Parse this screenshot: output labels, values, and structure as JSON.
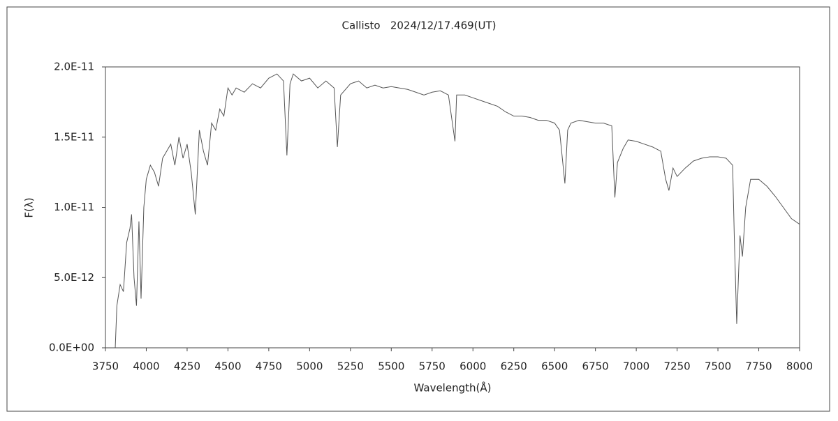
{
  "chart_data": {
    "type": "line",
    "title": "Callisto   2024/12/17.469(UT)",
    "x_label": "Wavelength(Å)",
    "y_label": "F(λ)",
    "color": "#555555",
    "xlim": [
      3750,
      8000
    ],
    "xticks": [
      3750,
      4000,
      4250,
      4500,
      4750,
      5000,
      5250,
      5500,
      5750,
      6000,
      6250,
      6500,
      6750,
      7000,
      7250,
      7500,
      7750,
      8000
    ],
    "ylim": [
      0,
      2e-11
    ],
    "yticks": [
      {
        "value": 0,
        "label": "0.0E+00"
      },
      {
        "value": 5e-12,
        "label": "5.0E-12"
      },
      {
        "value": 1e-11,
        "label": "1.0E-11"
      },
      {
        "value": 1.5e-11,
        "label": "1.5E-11"
      },
      {
        "value": 2e-11,
        "label": "2.0E-11"
      }
    ],
    "x": [
      3810,
      3820,
      3840,
      3860,
      3880,
      3900,
      3910,
      3925,
      3940,
      3955,
      3968,
      3985,
      4000,
      4025,
      4050,
      4075,
      4100,
      4125,
      4150,
      4175,
      4200,
      4225,
      4250,
      4275,
      4300,
      4325,
      4350,
      4375,
      4400,
      4425,
      4450,
      4475,
      4500,
      4525,
      4550,
      4600,
      4650,
      4700,
      4750,
      4800,
      4840,
      4861,
      4880,
      4900,
      4950,
      5000,
      5050,
      5100,
      5150,
      5170,
      5190,
      5250,
      5300,
      5350,
      5400,
      5450,
      5500,
      5550,
      5600,
      5650,
      5700,
      5750,
      5800,
      5850,
      5890,
      5900,
      5950,
      6000,
      6050,
      6100,
      6150,
      6200,
      6250,
      6300,
      6350,
      6400,
      6450,
      6500,
      6530,
      6563,
      6580,
      6600,
      6650,
      6700,
      6750,
      6800,
      6850,
      6869,
      6885,
      6920,
      6950,
      7000,
      7050,
      7100,
      7150,
      7180,
      7200,
      7225,
      7250,
      7300,
      7350,
      7400,
      7450,
      7500,
      7550,
      7590,
      7600,
      7615,
      7635,
      7650,
      7670,
      7700,
      7750,
      7800,
      7850,
      7900,
      7950,
      8000
    ],
    "values": [
      0,
      3e-12,
      4.5e-12,
      4e-12,
      7.5e-12,
      8.5e-12,
      9.5e-12,
      5e-12,
      3e-12,
      9e-12,
      3.5e-12,
      1e-11,
      1.2e-11,
      1.3e-11,
      1.25e-11,
      1.15e-11,
      1.35e-11,
      1.4e-11,
      1.45e-11,
      1.3e-11,
      1.5e-11,
      1.35e-11,
      1.45e-11,
      1.25e-11,
      9.5e-12,
      1.55e-11,
      1.4e-11,
      1.3e-11,
      1.6e-11,
      1.55e-11,
      1.7e-11,
      1.65e-11,
      1.85e-11,
      1.8e-11,
      1.85e-11,
      1.82e-11,
      1.88e-11,
      1.85e-11,
      1.92e-11,
      1.95e-11,
      1.9e-11,
      1.37e-11,
      1.88e-11,
      1.95e-11,
      1.9e-11,
      1.92e-11,
      1.85e-11,
      1.9e-11,
      1.85e-11,
      1.43e-11,
      1.8e-11,
      1.88e-11,
      1.9e-11,
      1.85e-11,
      1.87e-11,
      1.85e-11,
      1.86e-11,
      1.85e-11,
      1.84e-11,
      1.82e-11,
      1.8e-11,
      1.82e-11,
      1.83e-11,
      1.8e-11,
      1.47e-11,
      1.8e-11,
      1.8e-11,
      1.78e-11,
      1.76e-11,
      1.74e-11,
      1.72e-11,
      1.68e-11,
      1.65e-11,
      1.65e-11,
      1.64e-11,
      1.62e-11,
      1.62e-11,
      1.6e-11,
      1.55e-11,
      1.17e-11,
      1.55e-11,
      1.6e-11,
      1.62e-11,
      1.61e-11,
      1.6e-11,
      1.6e-11,
      1.58e-11,
      1.07e-11,
      1.32e-11,
      1.42e-11,
      1.48e-11,
      1.47e-11,
      1.45e-11,
      1.43e-11,
      1.4e-11,
      1.2e-11,
      1.12e-11,
      1.28e-11,
      1.22e-11,
      1.28e-11,
      1.33e-11,
      1.35e-11,
      1.36e-11,
      1.36e-11,
      1.35e-11,
      1.3e-11,
      8e-12,
      1.7e-12,
      8e-12,
      6.5e-12,
      1e-11,
      1.2e-11,
      1.2e-11,
      1.15e-11,
      1.08e-11,
      1e-11,
      9.2e-12,
      8.8e-12
    ]
  }
}
